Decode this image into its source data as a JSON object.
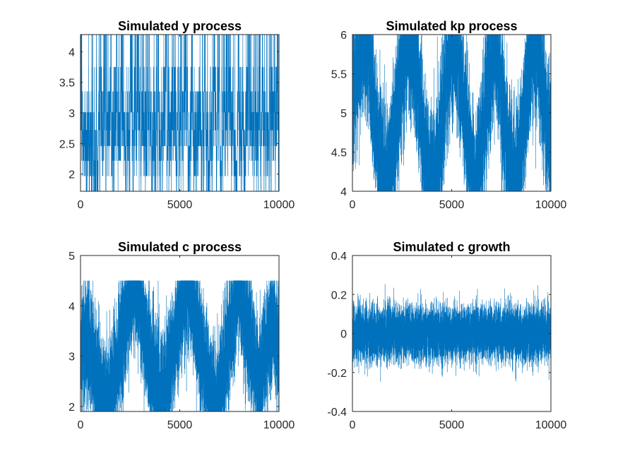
{
  "chart_data": [
    {
      "type": "line",
      "title": "Simulated y process",
      "xlabel": "",
      "ylabel": "",
      "xlim": [
        0,
        10000
      ],
      "ylim": [
        1.72,
        4.28
      ],
      "xticks": [
        0,
        5000,
        10000
      ],
      "xtick_labels": [
        "0",
        "5000",
        "10000"
      ],
      "yticks": [
        2,
        2.5,
        3,
        3.5,
        4
      ],
      "ytick_labels": [
        "2",
        "2.5",
        "3",
        "3.5",
        "4"
      ],
      "grid": false,
      "series": [
        {
          "color": "#0072BD",
          "kind": "discrete-states",
          "n_points": 10000,
          "states": [
            1.72,
            1.97,
            2.22,
            2.46,
            2.72,
            3.01,
            3.35,
            3.75,
            4.28
          ],
          "values": [
            2.72,
            3.01,
            3.35,
            2.72,
            2.46,
            2.22,
            2.46,
            2.72,
            3.01,
            3.35,
            3.75,
            4.28,
            3.75,
            3.35,
            3.01,
            2.72,
            2.46,
            2.22,
            1.97,
            1.72,
            1.97,
            2.22,
            2.46,
            2.72,
            3.01,
            3.35,
            3.01,
            2.72,
            2.46,
            2.72,
            3.01,
            3.35,
            3.75,
            3.35,
            3.01,
            2.72,
            2.46,
            2.22,
            2.46,
            2.72
          ]
        }
      ]
    },
    {
      "type": "line",
      "title": "Simulated kp process",
      "xlabel": "",
      "ylabel": "",
      "xlim": [
        0,
        10000
      ],
      "ylim": [
        4,
        6
      ],
      "xticks": [
        0,
        5000,
        10000
      ],
      "xtick_labels": [
        "0",
        "5000",
        "10000"
      ],
      "yticks": [
        4,
        4.5,
        5,
        5.5,
        6
      ],
      "ytick_labels": [
        "4",
        "4.5",
        "5",
        "5.5",
        "6"
      ],
      "grid": false,
      "series": [
        {
          "color": "#0072BD",
          "kind": "bounded-walk",
          "n_points": 10000,
          "values": [
            5.2,
            5.8,
            6.0,
            5.1,
            4.4,
            4.0,
            4.6,
            5.4,
            6.0,
            5.7,
            4.9,
            4.2,
            4.0,
            4.8,
            5.6,
            6.0,
            5.3,
            4.5,
            4.0,
            4.7,
            5.5,
            6.0,
            5.0,
            4.3,
            4.0,
            4.9,
            5.8,
            6.0,
            5.2,
            4.4
          ]
        }
      ]
    },
    {
      "type": "line",
      "title": "Simulated c process",
      "xlabel": "",
      "ylabel": "",
      "xlim": [
        0,
        10000
      ],
      "ylim": [
        1.9,
        5
      ],
      "xticks": [
        0,
        5000,
        10000
      ],
      "xtick_labels": [
        "0",
        "5000",
        "10000"
      ],
      "yticks": [
        2,
        3,
        4,
        5
      ],
      "ytick_labels": [
        "2",
        "3",
        "4",
        "5"
      ],
      "grid": false,
      "series": [
        {
          "color": "#0072BD",
          "kind": "bounded-walk",
          "n_points": 10000,
          "values": [
            3.1,
            3.4,
            2.8,
            2.2,
            1.9,
            2.6,
            3.3,
            4.0,
            4.5,
            3.8,
            3.0,
            2.5,
            2.0,
            2.7,
            3.5,
            4.2,
            4.5,
            3.6,
            2.9,
            2.3,
            1.9,
            2.8,
            3.6,
            4.4,
            3.9,
            3.1,
            2.4,
            3.0,
            3.7,
            3.2
          ]
        }
      ]
    },
    {
      "type": "line",
      "title": "Simulated c growth",
      "xlabel": "",
      "ylabel": "",
      "xlim": [
        0,
        10000
      ],
      "ylim": [
        -0.4,
        0.4
      ],
      "xticks": [
        0,
        5000,
        10000
      ],
      "xtick_labels": [
        "0",
        "5000",
        "10000"
      ],
      "yticks": [
        -0.4,
        -0.2,
        0,
        0.2,
        0.4
      ],
      "ytick_labels": [
        "-0.4",
        "-0.2",
        "0",
        "0.2",
        "0.4"
      ],
      "grid": false,
      "series": [
        {
          "color": "#0072BD",
          "kind": "noise",
          "n_points": 10000,
          "mean": 0,
          "std": 0.07,
          "min": -0.31,
          "max": 0.32
        }
      ]
    }
  ]
}
